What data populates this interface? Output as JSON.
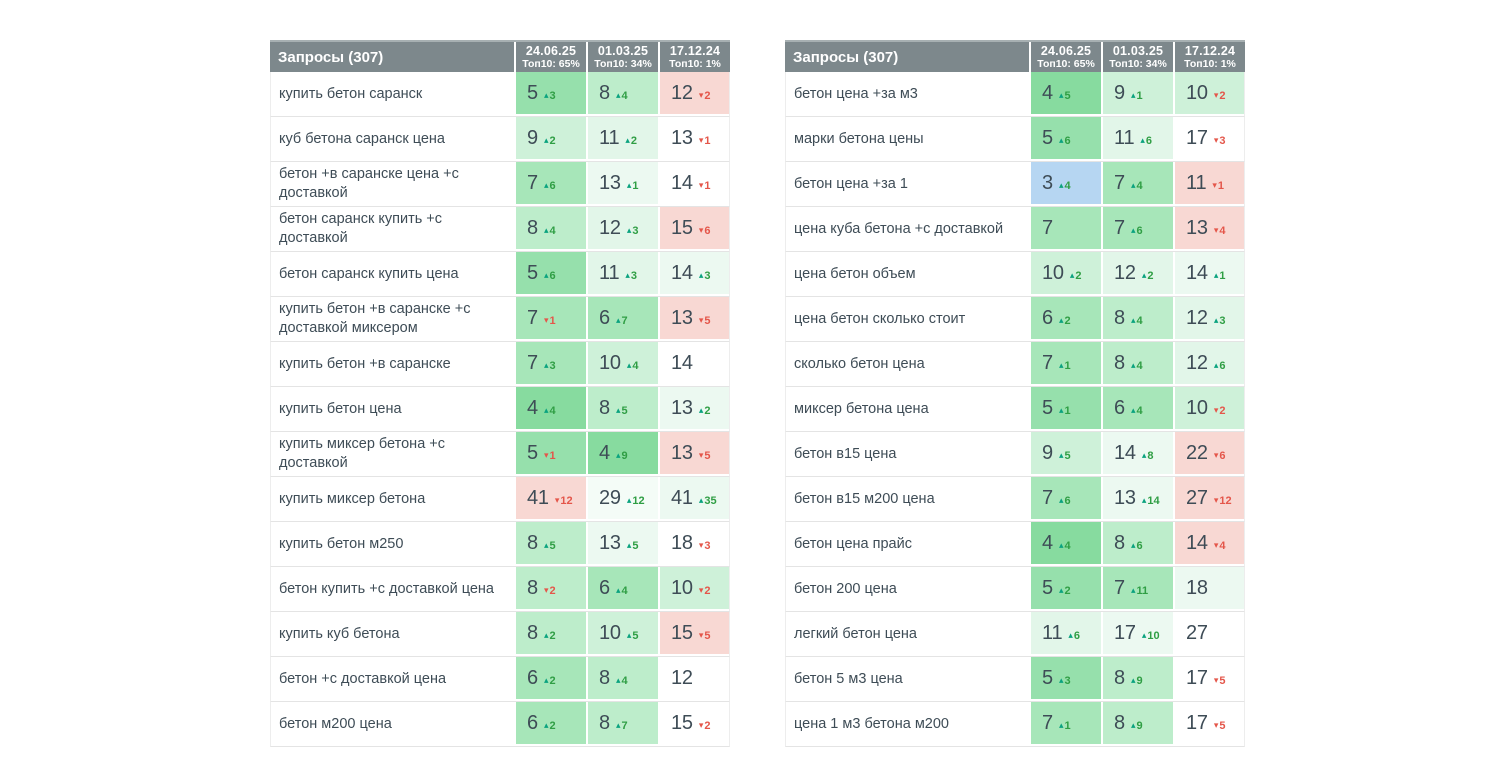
{
  "header": {
    "title": "Запросы (307)",
    "columns": [
      {
        "date": "24.06.25",
        "top10": "Топ10: 65%"
      },
      {
        "date": "01.03.25",
        "top10": "Топ10: 34%"
      },
      {
        "date": "17.12.24",
        "top10": "Топ10: 1%"
      }
    ]
  },
  "colors": {
    "header_bg": "#7d888c",
    "up_number": "#2f9e44",
    "up_arrow": "#0ba37f",
    "down": "#e4564a",
    "text": "#3e4c56",
    "cell_bg": {
      "blue": "#b6d6f2",
      "g1": "#87db9f",
      "g2": "#96e0ac",
      "g3": "#a7e6b9",
      "g4": "#bdedcb",
      "g5": "#cef1d9",
      "g6": "#e2f6e9",
      "g7": "#ecf9f1",
      "g8": "#f4fcf7",
      "pink": "#f8d8d3",
      "white": "#ffffff"
    }
  },
  "tables": [
    {
      "rows": [
        {
          "keyword": "купить бетон саранск",
          "cells": [
            {
              "v": "5",
              "d": "3",
              "dir": "up",
              "bg": "g2"
            },
            {
              "v": "8",
              "d": "4",
              "dir": "up",
              "bg": "g4"
            },
            {
              "v": "12",
              "d": "2",
              "dir": "down",
              "bg": "pink"
            }
          ]
        },
        {
          "keyword": "куб бетона саранск цена",
          "cells": [
            {
              "v": "9",
              "d": "2",
              "dir": "up",
              "bg": "g5"
            },
            {
              "v": "11",
              "d": "2",
              "dir": "up",
              "bg": "g6"
            },
            {
              "v": "13",
              "d": "1",
              "dir": "down",
              "bg": "white"
            }
          ]
        },
        {
          "keyword": "бетон +в саранске цена +с доставкой",
          "cells": [
            {
              "v": "7",
              "d": "6",
              "dir": "up",
              "bg": "g3"
            },
            {
              "v": "13",
              "d": "1",
              "dir": "up",
              "bg": "g7"
            },
            {
              "v": "14",
              "d": "1",
              "dir": "down",
              "bg": "white"
            }
          ]
        },
        {
          "keyword": "бетон саранск купить +с доставкой",
          "cells": [
            {
              "v": "8",
              "d": "4",
              "dir": "up",
              "bg": "g4"
            },
            {
              "v": "12",
              "d": "3",
              "dir": "up",
              "bg": "g6"
            },
            {
              "v": "15",
              "d": "6",
              "dir": "down",
              "bg": "pink"
            }
          ]
        },
        {
          "keyword": "бетон саранск купить цена",
          "cells": [
            {
              "v": "5",
              "d": "6",
              "dir": "up",
              "bg": "g2"
            },
            {
              "v": "11",
              "d": "3",
              "dir": "up",
              "bg": "g6"
            },
            {
              "v": "14",
              "d": "3",
              "dir": "up",
              "bg": "g7"
            }
          ]
        },
        {
          "keyword": "купить бетон +в саранске +с доставкой миксером",
          "cells": [
            {
              "v": "7",
              "d": "1",
              "dir": "down",
              "bg": "g3"
            },
            {
              "v": "6",
              "d": "7",
              "dir": "up",
              "bg": "g3"
            },
            {
              "v": "13",
              "d": "5",
              "dir": "down",
              "bg": "pink"
            }
          ]
        },
        {
          "keyword": "купить бетон +в саранске",
          "cells": [
            {
              "v": "7",
              "d": "3",
              "dir": "up",
              "bg": "g3"
            },
            {
              "v": "10",
              "d": "4",
              "dir": "up",
              "bg": "g5"
            },
            {
              "v": "14",
              "d": null,
              "dir": null,
              "bg": "white"
            }
          ]
        },
        {
          "keyword": "купить бетон цена",
          "cells": [
            {
              "v": "4",
              "d": "4",
              "dir": "up",
              "bg": "g1"
            },
            {
              "v": "8",
              "d": "5",
              "dir": "up",
              "bg": "g4"
            },
            {
              "v": "13",
              "d": "2",
              "dir": "up",
              "bg": "g7"
            }
          ]
        },
        {
          "keyword": "купить миксер бетона +с доставкой",
          "cells": [
            {
              "v": "5",
              "d": "1",
              "dir": "down",
              "bg": "g2"
            },
            {
              "v": "4",
              "d": "9",
              "dir": "up",
              "bg": "g1"
            },
            {
              "v": "13",
              "d": "5",
              "dir": "down",
              "bg": "pink"
            }
          ]
        },
        {
          "keyword": "купить миксер бетона",
          "cells": [
            {
              "v": "41",
              "d": "12",
              "dir": "down",
              "bg": "pink"
            },
            {
              "v": "29",
              "d": "12",
              "dir": "up",
              "bg": "g8"
            },
            {
              "v": "41",
              "d": "35",
              "dir": "up",
              "bg": "g7"
            }
          ]
        },
        {
          "keyword": "купить бетон м250",
          "cells": [
            {
              "v": "8",
              "d": "5",
              "dir": "up",
              "bg": "g4"
            },
            {
              "v": "13",
              "d": "5",
              "dir": "up",
              "bg": "g7"
            },
            {
              "v": "18",
              "d": "3",
              "dir": "down",
              "bg": "white"
            }
          ]
        },
        {
          "keyword": "бетон купить +с доставкой цена",
          "cells": [
            {
              "v": "8",
              "d": "2",
              "dir": "down",
              "bg": "g4"
            },
            {
              "v": "6",
              "d": "4",
              "dir": "up",
              "bg": "g3"
            },
            {
              "v": "10",
              "d": "2",
              "dir": "down",
              "bg": "g5"
            }
          ]
        },
        {
          "keyword": "купить куб бетона",
          "cells": [
            {
              "v": "8",
              "d": "2",
              "dir": "up",
              "bg": "g4"
            },
            {
              "v": "10",
              "d": "5",
              "dir": "up",
              "bg": "g5"
            },
            {
              "v": "15",
              "d": "5",
              "dir": "down",
              "bg": "pink"
            }
          ]
        },
        {
          "keyword": "бетон +с доставкой цена",
          "cells": [
            {
              "v": "6",
              "d": "2",
              "dir": "up",
              "bg": "g3"
            },
            {
              "v": "8",
              "d": "4",
              "dir": "up",
              "bg": "g4"
            },
            {
              "v": "12",
              "d": null,
              "dir": null,
              "bg": "white"
            }
          ]
        },
        {
          "keyword": "бетон м200 цена",
          "cells": [
            {
              "v": "6",
              "d": "2",
              "dir": "up",
              "bg": "g3"
            },
            {
              "v": "8",
              "d": "7",
              "dir": "up",
              "bg": "g4"
            },
            {
              "v": "15",
              "d": "2",
              "dir": "down",
              "bg": "white"
            }
          ]
        }
      ]
    },
    {
      "rows": [
        {
          "keyword": "бетон цена +за м3",
          "cells": [
            {
              "v": "4",
              "d": "5",
              "dir": "up",
              "bg": "g1"
            },
            {
              "v": "9",
              "d": "1",
              "dir": "up",
              "bg": "g5"
            },
            {
              "v": "10",
              "d": "2",
              "dir": "down",
              "bg": "g5"
            }
          ]
        },
        {
          "keyword": "марки бетона цены",
          "cells": [
            {
              "v": "5",
              "d": "6",
              "dir": "up",
              "bg": "g2"
            },
            {
              "v": "11",
              "d": "6",
              "dir": "up",
              "bg": "g6"
            },
            {
              "v": "17",
              "d": "3",
              "dir": "down",
              "bg": "white"
            }
          ]
        },
        {
          "keyword": "бетон цена +за 1",
          "cells": [
            {
              "v": "3",
              "d": "4",
              "dir": "up",
              "bg": "blue"
            },
            {
              "v": "7",
              "d": "4",
              "dir": "up",
              "bg": "g3"
            },
            {
              "v": "11",
              "d": "1",
              "dir": "down",
              "bg": "pink"
            }
          ]
        },
        {
          "keyword": "цена куба бетона +с доставкой",
          "cells": [
            {
              "v": "7",
              "d": null,
              "dir": null,
              "bg": "g3"
            },
            {
              "v": "7",
              "d": "6",
              "dir": "up",
              "bg": "g3"
            },
            {
              "v": "13",
              "d": "4",
              "dir": "down",
              "bg": "pink"
            }
          ]
        },
        {
          "keyword": "цена бетон объем",
          "cells": [
            {
              "v": "10",
              "d": "2",
              "dir": "up",
              "bg": "g5"
            },
            {
              "v": "12",
              "d": "2",
              "dir": "up",
              "bg": "g6"
            },
            {
              "v": "14",
              "d": "1",
              "dir": "up",
              "bg": "g7"
            }
          ]
        },
        {
          "keyword": "цена бетон сколько стоит",
          "cells": [
            {
              "v": "6",
              "d": "2",
              "dir": "up",
              "bg": "g3"
            },
            {
              "v": "8",
              "d": "4",
              "dir": "up",
              "bg": "g4"
            },
            {
              "v": "12",
              "d": "3",
              "dir": "up",
              "bg": "g6"
            }
          ]
        },
        {
          "keyword": "сколько бетон цена",
          "cells": [
            {
              "v": "7",
              "d": "1",
              "dir": "up",
              "bg": "g3"
            },
            {
              "v": "8",
              "d": "4",
              "dir": "up",
              "bg": "g4"
            },
            {
              "v": "12",
              "d": "6",
              "dir": "up",
              "bg": "g6"
            }
          ]
        },
        {
          "keyword": "миксер бетона цена",
          "cells": [
            {
              "v": "5",
              "d": "1",
              "dir": "up",
              "bg": "g2"
            },
            {
              "v": "6",
              "d": "4",
              "dir": "up",
              "bg": "g3"
            },
            {
              "v": "10",
              "d": "2",
              "dir": "down",
              "bg": "g5"
            }
          ]
        },
        {
          "keyword": "бетон в15 цена",
          "cells": [
            {
              "v": "9",
              "d": "5",
              "dir": "up",
              "bg": "g5"
            },
            {
              "v": "14",
              "d": "8",
              "dir": "up",
              "bg": "g7"
            },
            {
              "v": "22",
              "d": "6",
              "dir": "down",
              "bg": "pink"
            }
          ]
        },
        {
          "keyword": "бетон в15 м200 цена",
          "cells": [
            {
              "v": "7",
              "d": "6",
              "dir": "up",
              "bg": "g3"
            },
            {
              "v": "13",
              "d": "14",
              "dir": "up",
              "bg": "g7"
            },
            {
              "v": "27",
              "d": "12",
              "dir": "down",
              "bg": "pink"
            }
          ]
        },
        {
          "keyword": "бетон цена прайс",
          "cells": [
            {
              "v": "4",
              "d": "4",
              "dir": "up",
              "bg": "g1"
            },
            {
              "v": "8",
              "d": "6",
              "dir": "up",
              "bg": "g4"
            },
            {
              "v": "14",
              "d": "4",
              "dir": "down",
              "bg": "pink"
            }
          ]
        },
        {
          "keyword": "бетон 200 цена",
          "cells": [
            {
              "v": "5",
              "d": "2",
              "dir": "up",
              "bg": "g2"
            },
            {
              "v": "7",
              "d": "11",
              "dir": "up",
              "bg": "g3"
            },
            {
              "v": "18",
              "d": null,
              "dir": null,
              "bg": "g7"
            }
          ]
        },
        {
          "keyword": "легкий бетон цена",
          "cells": [
            {
              "v": "11",
              "d": "6",
              "dir": "up",
              "bg": "g6"
            },
            {
              "v": "17",
              "d": "10",
              "dir": "up",
              "bg": "g7"
            },
            {
              "v": "27",
              "d": null,
              "dir": null,
              "bg": "white"
            }
          ]
        },
        {
          "keyword": "бетон 5 м3 цена",
          "cells": [
            {
              "v": "5",
              "d": "3",
              "dir": "up",
              "bg": "g2"
            },
            {
              "v": "8",
              "d": "9",
              "dir": "up",
              "bg": "g4"
            },
            {
              "v": "17",
              "d": "5",
              "dir": "down",
              "bg": "white"
            }
          ]
        },
        {
          "keyword": "цена 1 м3 бетона м200",
          "cells": [
            {
              "v": "7",
              "d": "1",
              "dir": "up",
              "bg": "g3"
            },
            {
              "v": "8",
              "d": "9",
              "dir": "up",
              "bg": "g4"
            },
            {
              "v": "17",
              "d": "5",
              "dir": "down",
              "bg": "white"
            }
          ]
        }
      ]
    }
  ]
}
